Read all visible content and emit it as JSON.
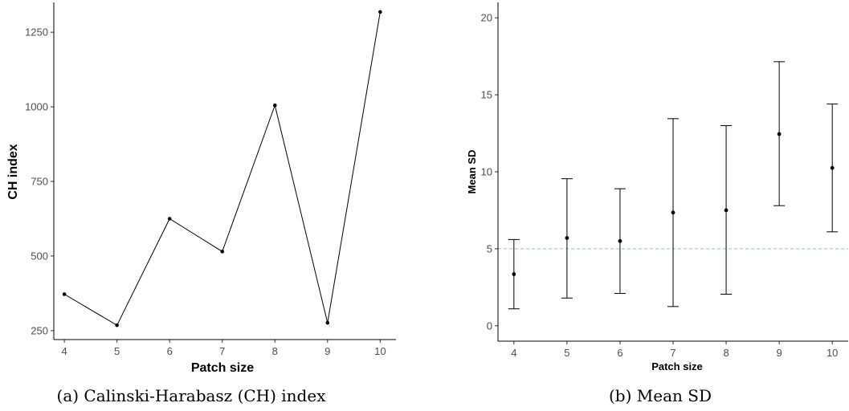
{
  "chart_data": [
    {
      "type": "line",
      "caption": "(a) Calinski-Harabasz (CH) index",
      "xlabel": "Patch size",
      "ylabel": "CH index",
      "x": [
        4,
        5,
        6,
        7,
        8,
        9,
        10
      ],
      "values": [
        372,
        268,
        625,
        515,
        1005,
        276,
        1318
      ],
      "xlim": [
        3.8,
        10.3
      ],
      "ylim": [
        220,
        1350
      ],
      "xticks": [
        "4",
        "5",
        "6",
        "7",
        "8",
        "9",
        "10"
      ],
      "yticks": [
        "250",
        "500",
        "750",
        "1000",
        "1250"
      ],
      "ytick_values": [
        250,
        500,
        750,
        1000,
        1250
      ],
      "grid": false
    },
    {
      "type": "scatter",
      "caption": "(b) Mean SD",
      "xlabel": "Patch size",
      "ylabel": "Mean SD",
      "x": [
        4,
        5,
        6,
        7,
        8,
        9,
        10
      ],
      "values": [
        3.35,
        5.7,
        5.5,
        7.35,
        7.5,
        12.45,
        10.25
      ],
      "lower": [
        1.1,
        1.8,
        2.1,
        1.25,
        2.05,
        7.8,
        6.1
      ],
      "upper": [
        5.6,
        9.55,
        8.9,
        13.45,
        13.0,
        17.15,
        14.4
      ],
      "reference_line": 5,
      "reference_line_color": "#8fc9c0",
      "xlim": [
        3.7,
        10.3
      ],
      "ylim": [
        -1,
        21
      ],
      "xticks": [
        "4",
        "5",
        "6",
        "7",
        "8",
        "9",
        "10"
      ],
      "yticks": [
        "0",
        "5",
        "10",
        "15",
        "20"
      ],
      "ytick_values": [
        0,
        5,
        10,
        15,
        20
      ],
      "grid": false
    }
  ]
}
